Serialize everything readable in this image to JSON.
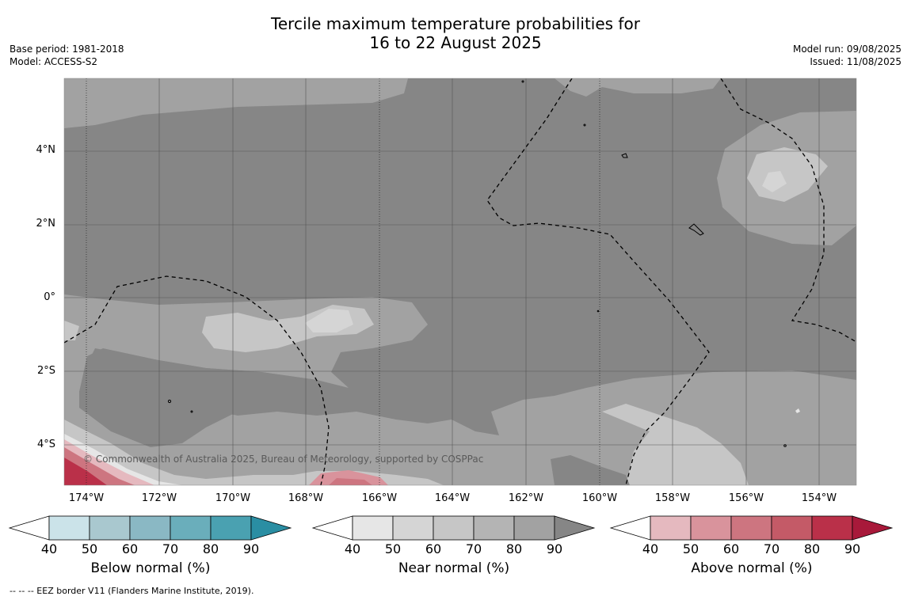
{
  "title_line1": "Tercile maximum temperature probabilities for",
  "title_line2": "16 to 22 August 2025",
  "base_period": "Base period: 1981-2018",
  "model": "Model: ACCESS-S2",
  "model_run": "Model run: 09/08/2025",
  "issued": "Issued: 11/08/2025",
  "copyright": "© Commonwealth of Australia 2025, Bureau of Meteorology, supported by COSPPac",
  "footnote": "--  --  -- EEZ border V11 (Flanders Marine Institute, 2019).",
  "lat_labels": [
    "4°N",
    "2°N",
    "0°",
    "2°S",
    "4°S"
  ],
  "lon_labels": [
    "174°W",
    "172°W",
    "170°W",
    "168°W",
    "166°W",
    "164°W",
    "162°W",
    "160°W",
    "158°W",
    "156°W",
    "154°W"
  ],
  "colorbars": [
    {
      "title": "Below normal (%)",
      "ticks": [
        "40",
        "50",
        "60",
        "70",
        "80",
        "90"
      ],
      "colors": [
        "#cbe3e9",
        "#a9c8cf",
        "#8ab8c4",
        "#6aaebb",
        "#4aa1b1",
        "#2a8ea3"
      ]
    },
    {
      "title": "Near normal (%)",
      "ticks": [
        "40",
        "50",
        "60",
        "70",
        "80",
        "90"
      ],
      "colors": [
        "#e6e6e6",
        "#d5d5d5",
        "#c6c6c6",
        "#b4b4b4",
        "#a2a2a2",
        "#868686"
      ]
    },
    {
      "title": "Above normal (%)",
      "ticks": [
        "40",
        "50",
        "60",
        "70",
        "80",
        "90"
      ],
      "colors": [
        "#e5b9bf",
        "#d9939c",
        "#cd7580",
        "#c45a67",
        "#ba3049",
        "#a8193a"
      ]
    }
  ]
}
